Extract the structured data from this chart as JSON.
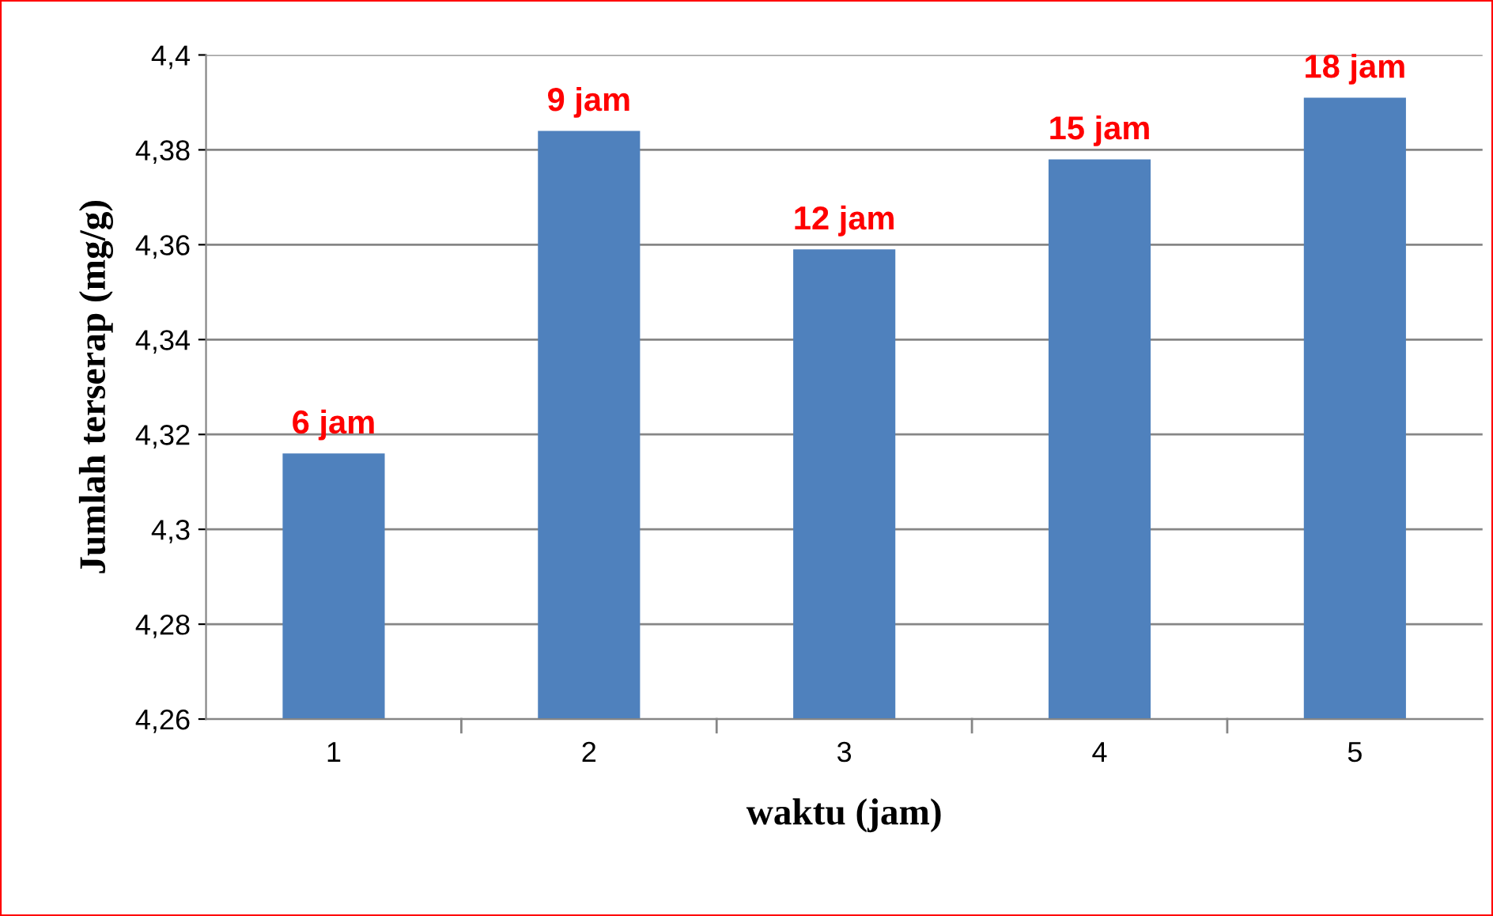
{
  "chart_data": {
    "type": "bar",
    "xlabel": "waktu (jam)",
    "ylabel": "Jumlah terserap (mg/g)",
    "categories": [
      "1",
      "2",
      "3",
      "4",
      "5"
    ],
    "values": [
      4.316,
      4.384,
      4.359,
      4.378,
      4.391
    ],
    "annotations": [
      {
        "text": "6 jam",
        "x": "1",
        "y": 4.316
      },
      {
        "text": "9 jam",
        "x": "2",
        "y": 4.384
      },
      {
        "text": "12 jam",
        "x": "3",
        "y": 4.359
      },
      {
        "text": "15 jam",
        "x": "4",
        "y": 4.378
      },
      {
        "text": "18 jam",
        "x": "5",
        "y": 4.391
      }
    ],
    "color": "#4f81bd",
    "ylim": [
      4.26,
      4.4
    ],
    "yticks": [
      {
        "value": 4.26,
        "label": "4,26"
      },
      {
        "value": 4.28,
        "label": "4,28"
      },
      {
        "value": 4.3,
        "label": "4,3"
      },
      {
        "value": 4.32,
        "label": "4,32"
      },
      {
        "value": 4.34,
        "label": "4,34"
      },
      {
        "value": 4.36,
        "label": "4,36"
      },
      {
        "value": 4.38,
        "label": "4,38"
      },
      {
        "value": 4.4,
        "label": "4,4"
      }
    ],
    "grid": "y",
    "legend": false
  }
}
